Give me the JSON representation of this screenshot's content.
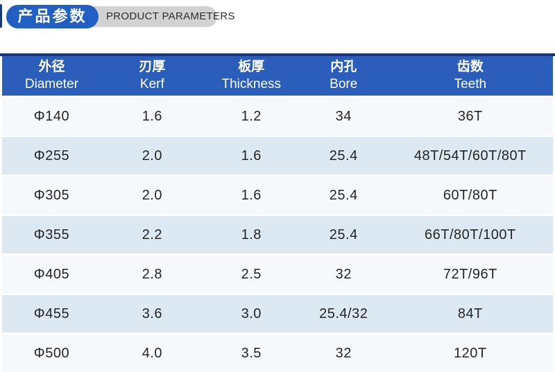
{
  "header": {
    "title_cn": "产品参数",
    "title_en": "PRODUCT PARAMETERS",
    "badge_color": "#2160c2",
    "pill_color": "#d2d2d2",
    "accent_bar_color": "#1a3a80"
  },
  "table": {
    "header_bg": "#2b5dbb",
    "top_rule_color": "#17357e",
    "row_light_color": "#f5f9fc",
    "row_alt_color": "#dde9f2",
    "columns": [
      {
        "cn": "外径",
        "en": "Diameter"
      },
      {
        "cn": "刃厚",
        "en": "Kerf"
      },
      {
        "cn": "板厚",
        "en": "Thickness"
      },
      {
        "cn": "内孔",
        "en": "Bore"
      },
      {
        "cn": "齿数",
        "en": "Teeth"
      }
    ],
    "rows": [
      [
        "Φ140",
        "1.6",
        "1.2",
        "34",
        "36T"
      ],
      [
        "Φ255",
        "2.0",
        "1.6",
        "25.4",
        "48T/54T/60T/80T"
      ],
      [
        "Φ305",
        "2.0",
        "1.6",
        "25.4",
        "60T/80T"
      ],
      [
        "Φ355",
        "2.2",
        "1.8",
        "25.4",
        "66T/80T/100T"
      ],
      [
        "Φ405",
        "2.8",
        "2.5",
        "32",
        "72T/96T"
      ],
      [
        "Φ455",
        "3.6",
        "3.0",
        "25.4/32",
        "84T"
      ],
      [
        "Φ500",
        "4.0",
        "3.5",
        "32",
        "120T"
      ]
    ]
  },
  "chart_data": {
    "type": "table",
    "title": "产品参数 / PRODUCT PARAMETERS",
    "columns": [
      "外径 Diameter",
      "刃厚 Kerf",
      "板厚 Thickness",
      "内孔 Bore",
      "齿数 Teeth"
    ],
    "rows": [
      [
        "Φ140",
        "1.6",
        "1.2",
        "34",
        "36T"
      ],
      [
        "Φ255",
        "2.0",
        "1.6",
        "25.4",
        "48T/54T/60T/80T"
      ],
      [
        "Φ305",
        "2.0",
        "1.6",
        "25.4",
        "60T/80T"
      ],
      [
        "Φ355",
        "2.2",
        "1.8",
        "25.4",
        "66T/80T/100T"
      ],
      [
        "Φ405",
        "2.8",
        "2.5",
        "32",
        "72T/96T"
      ],
      [
        "Φ455",
        "3.6",
        "3.0",
        "25.4/32",
        "84T"
      ],
      [
        "Φ500",
        "4.0",
        "3.5",
        "32",
        "120T"
      ]
    ]
  }
}
